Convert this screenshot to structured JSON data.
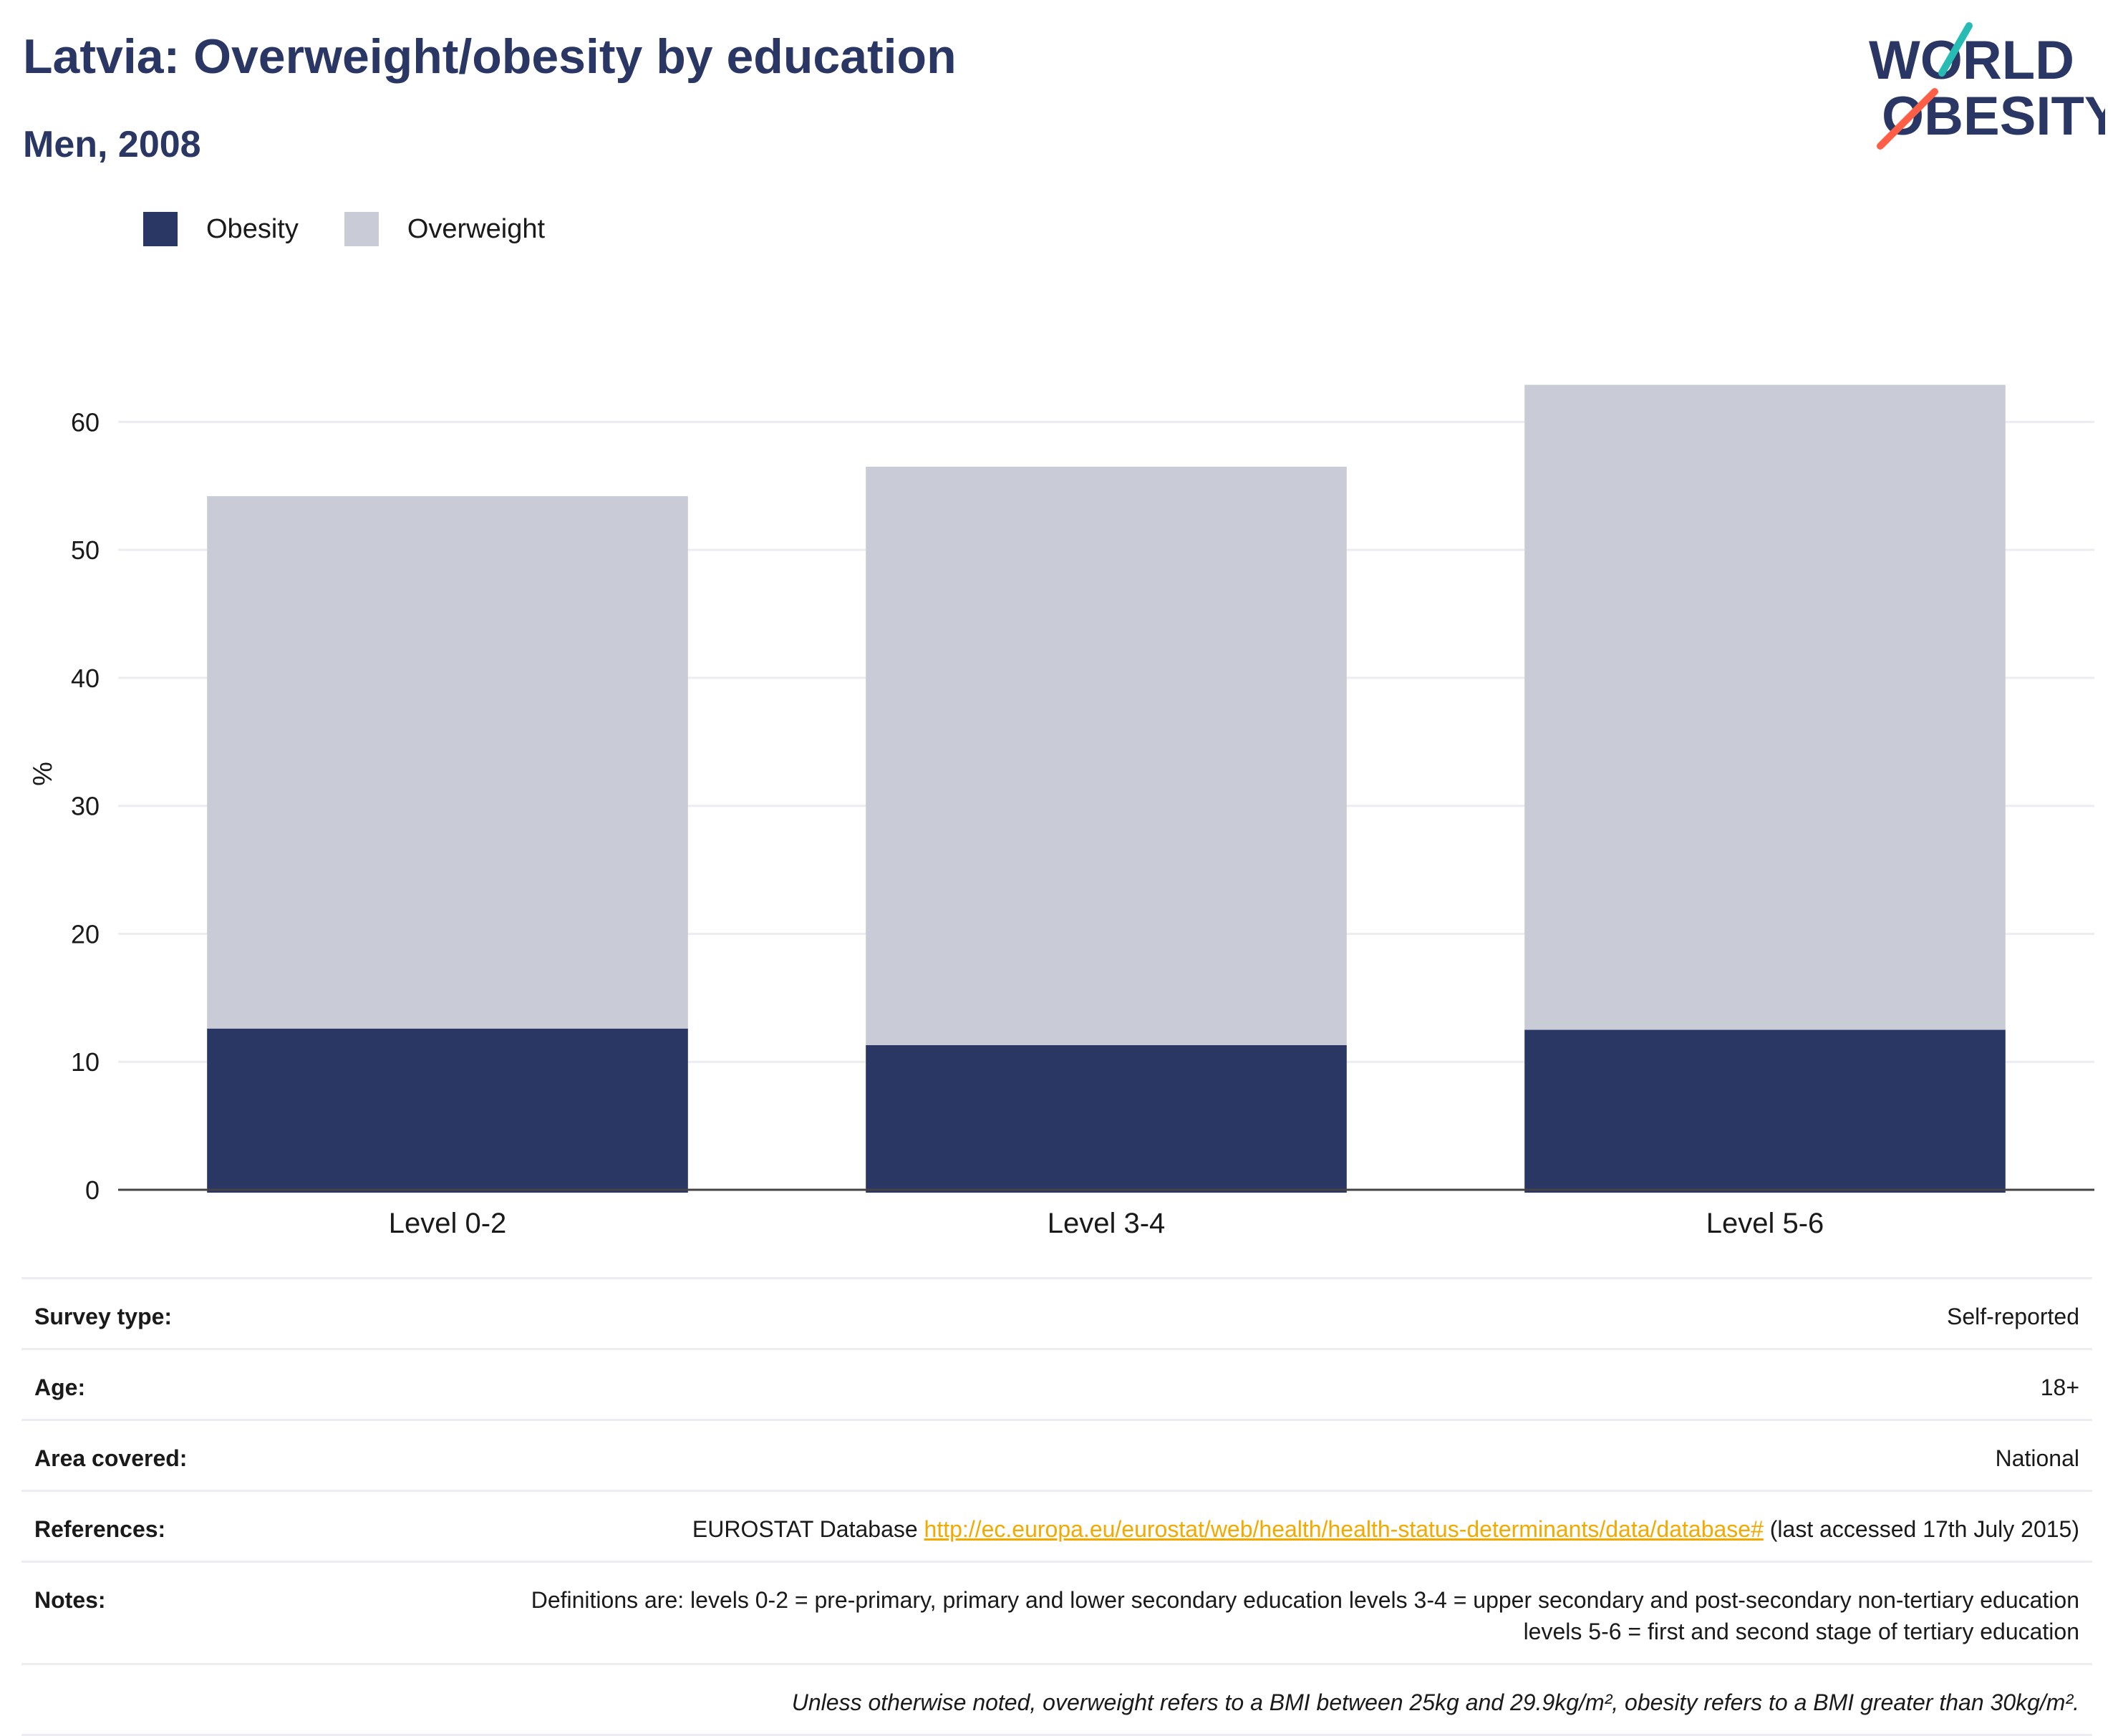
{
  "header": {
    "title": "Latvia: Overweight/obesity by education",
    "subtitle": "Men, 2008"
  },
  "logo": {
    "line1": "WORLD",
    "line2": "OBESITY"
  },
  "colors": {
    "obesity": "#2a3764",
    "overweight": "#c9cbd7",
    "title": "#2a3764",
    "link": "#f2a900"
  },
  "chart_data": {
    "type": "bar",
    "stacked": true,
    "categories": [
      "Level 0-2",
      "Level 3-4",
      "Level 5-6"
    ],
    "series": [
      {
        "name": "Obesity",
        "values": [
          12.6,
          11.3,
          12.5
        ]
      },
      {
        "name": "Overweight",
        "values": [
          41.6,
          45.2,
          50.4
        ]
      }
    ],
    "title": "",
    "xlabel": "",
    "ylabel": "%",
    "ylim": [
      0,
      65
    ],
    "yticks": [
      0,
      10,
      20,
      30,
      40,
      50,
      60
    ],
    "grid": true,
    "legend": "top-left"
  },
  "meta": {
    "survey_type_label": "Survey type:",
    "survey_type": "Self-reported",
    "age_label": "Age:",
    "age": "18+",
    "area_label": "Area covered:",
    "area": "National",
    "references_label": "References:",
    "references_prefix": "EUROSTAT Database",
    "references_link": "http://ec.europa.eu/eurostat/web/health/health-status-determinants/data/database#",
    "references_suffix": "(last accessed 17th July 2015)",
    "notes_label": "Notes:",
    "notes": "Definitions are: levels 0-2 = pre-primary, primary and lower secondary education levels 3-4 = upper secondary and post-secondary non-tertiary education levels 5-6 = first and second stage of tertiary education",
    "footnote": "Unless otherwise noted, overweight refers to a BMI between 25kg and 29.9kg/m², obesity refers to a BMI greater than 30kg/m²."
  }
}
